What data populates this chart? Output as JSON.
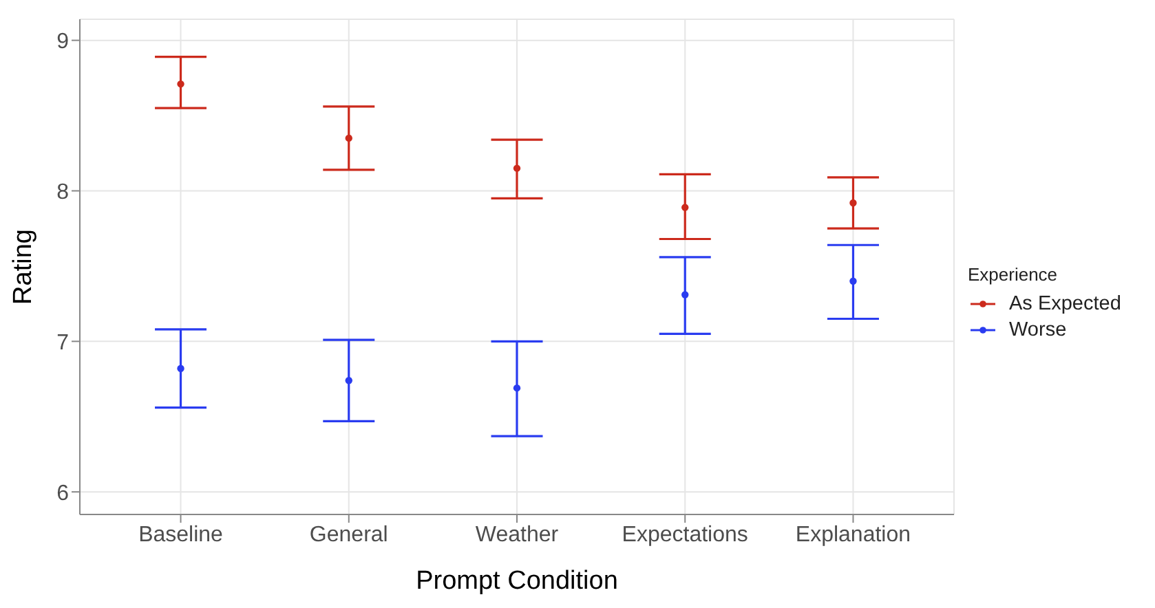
{
  "chart_data": {
    "type": "scatter",
    "xlabel": "Prompt Condition",
    "ylabel": "Rating",
    "legend_title": "Experience",
    "categories": [
      "Baseline",
      "General",
      "Weather",
      "Expectations",
      "Explanation"
    ],
    "series": [
      {
        "name": "As Expected",
        "color": "#cc2a1c",
        "values": [
          8.71,
          8.35,
          8.15,
          7.89,
          7.92
        ],
        "errors": [
          [
            8.55,
            8.89
          ],
          [
            8.14,
            8.56
          ],
          [
            7.95,
            8.34
          ],
          [
            7.68,
            8.11
          ],
          [
            7.75,
            8.09
          ]
        ]
      },
      {
        "name": "Worse",
        "color": "#2a3cf0",
        "values": [
          6.82,
          6.74,
          6.69,
          7.31,
          7.4
        ],
        "errors": [
          [
            6.56,
            7.08
          ],
          [
            6.47,
            7.01
          ],
          [
            6.37,
            7.0
          ],
          [
            7.05,
            7.56
          ],
          [
            7.15,
            7.64
          ]
        ]
      }
    ],
    "ylim": [
      5.85,
      9.14
    ],
    "yticks": [
      6,
      7,
      8,
      9
    ],
    "grid": true,
    "legend": "right",
    "marker": "circle"
  }
}
